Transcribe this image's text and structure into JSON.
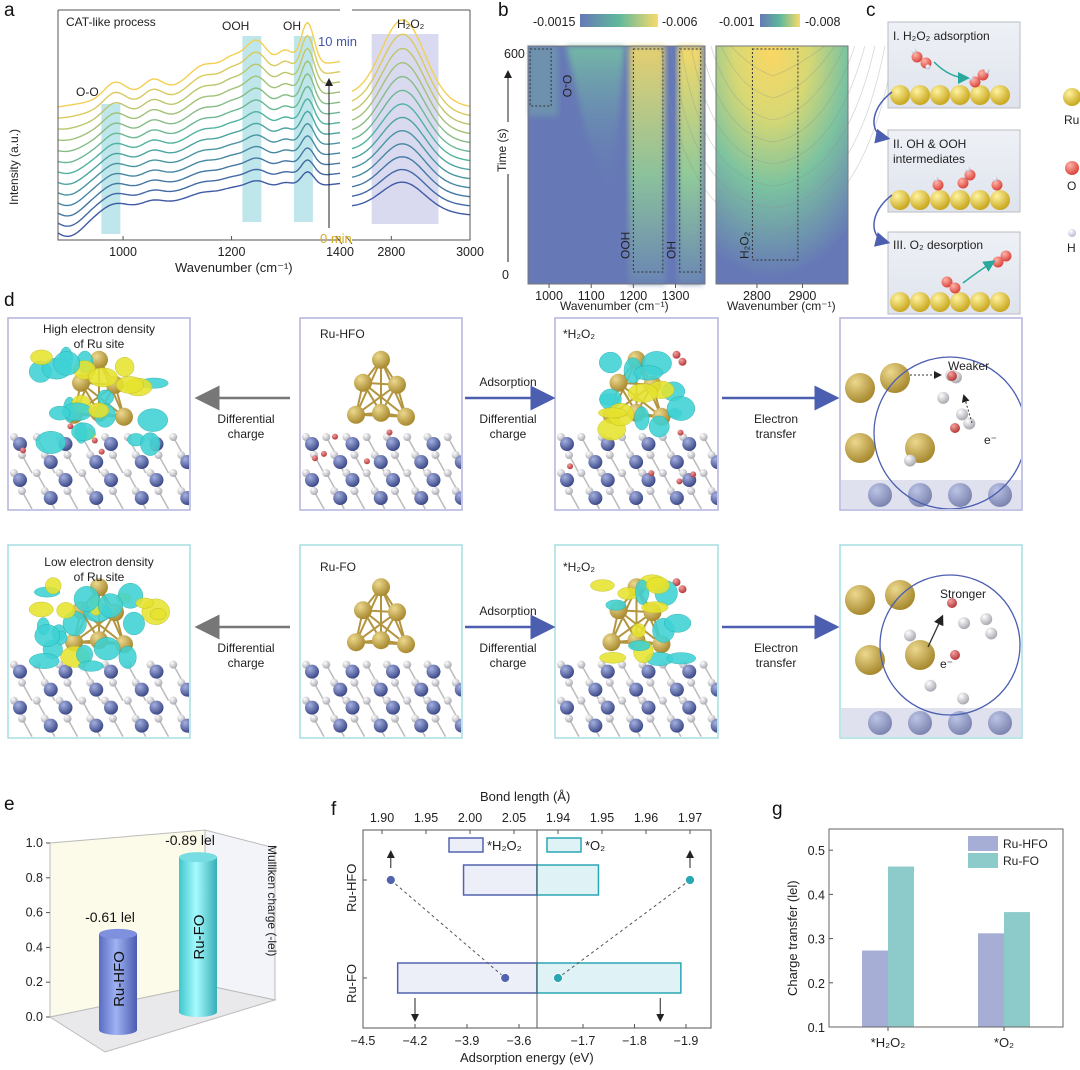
{
  "panel_labels": {
    "a": "a",
    "b": "b",
    "c": "c",
    "d": "d",
    "e": "e",
    "f": "f",
    "g": "g"
  },
  "chart_data": [
    {
      "panel": "a",
      "type": "line",
      "annotation": "CAT-like process",
      "xlabel": "Wavenumber (cm⁻¹)",
      "ylabel": "Intensity (a.u.)",
      "x_segments": [
        [
          880,
          1400
        ],
        [
          2700,
          3000
        ]
      ],
      "x_ticks": [
        1000,
        1200,
        1400,
        2800,
        3000
      ],
      "bands": [
        {
          "label": "O-O",
          "range": [
            960,
            995
          ]
        },
        {
          "label": "OOH",
          "range": [
            1220,
            1255
          ]
        },
        {
          "label": "OH",
          "range": [
            1315,
            1350
          ]
        },
        {
          "label": "H₂O₂",
          "range": [
            2750,
            2920
          ]
        }
      ],
      "time_start": "0 min",
      "time_end": "10 min",
      "series_count": 13,
      "colors": {
        "start": "#3f5aa6",
        "mid": "#4fb3a0",
        "end": "#f4cf52",
        "band": "#bfe6ea",
        "band_h2o2": "#d9daf0"
      }
    },
    {
      "panel": "b",
      "type": "heatmap",
      "ylabel": "Time (s)",
      "xlabel": "Wavenumber (cm⁻¹)",
      "y_ticks": [
        "0",
        "600"
      ],
      "maps": [
        {
          "xlim": [
            950,
            1370
          ],
          "x_ticks": [
            1000,
            1100,
            1200,
            1300
          ],
          "colorbar": [
            "-0.0015",
            "-0.006"
          ],
          "boxes": [
            {
              "label": "O-O",
              "range": [
                955,
                1005
              ]
            },
            {
              "label": "OOH",
              "range": [
                1200,
                1270
              ]
            },
            {
              "label": "OH",
              "range": [
                1310,
                1360
              ]
            }
          ]
        },
        {
          "xlim": [
            2710,
            3000
          ],
          "x_ticks": [
            2800,
            2900
          ],
          "colorbar": [
            "-0.001",
            "-0.008"
          ],
          "boxes": [
            {
              "label": "H₂O₂",
              "range": [
                2790,
                2890
              ]
            }
          ]
        }
      ],
      "colors": {
        "low": "#6679b6",
        "mid": "#5fb89c",
        "high": "#f8da6a"
      }
    },
    {
      "panel": "e",
      "type": "bar",
      "style": "3d-cylinder",
      "ylabel": "Mulliken charge (-lel)",
      "ylim": [
        0,
        1.0
      ],
      "y_ticks": [
        "0.0",
        "0.2",
        "0.4",
        "0.6",
        "0.8",
        "1.0"
      ],
      "categories": [
        "Ru-HFO",
        "Ru-FO"
      ],
      "values": [
        0.61,
        0.89
      ],
      "data_labels": [
        "-0.61 lel",
        "-0.89 lel"
      ],
      "colors": [
        "#6f82d6",
        "#5fe0e6"
      ]
    },
    {
      "panel": "f",
      "type": "bar",
      "orientation": "horizontal",
      "xlabel": "Adsorption energy (eV)",
      "x2label": "Bond length (Å)",
      "categories": [
        "Ru-HFO",
        "Ru-FO"
      ],
      "x_ticks_left": [
        "−4.5",
        "−4.2",
        "−3.9",
        "−3.6"
      ],
      "x_ticks_right": [
        "−1.7",
        "−1.8",
        "−1.9"
      ],
      "x2_ticks_left": [
        "1.90",
        "1.95",
        "2.00",
        "2.05"
      ],
      "x2_ticks_right": [
        "1.94",
        "1.95",
        "1.96",
        "1.97"
      ],
      "series": [
        {
          "name": "*H₂O₂",
          "energy": [
            -3.92,
            -4.3
          ],
          "bond_length": [
            1.91,
            2.04
          ],
          "color": "#5463b0",
          "fill": "#eceef8"
        },
        {
          "name": "*O₂",
          "energy": [
            -1.73,
            -1.89
          ],
          "bond_length": [
            1.97,
            1.94
          ],
          "color": "#2aa7b5",
          "fill": "#dff2f6"
        }
      ]
    },
    {
      "panel": "g",
      "type": "bar",
      "ylabel": "Charge transfer (lel)",
      "ylim": [
        0.1,
        0.55
      ],
      "y_ticks": [
        "0.1",
        "0.2",
        "0.3",
        "0.4",
        "0.5"
      ],
      "categories": [
        "*H₂O₂",
        "*O₂"
      ],
      "series": [
        {
          "name": "Ru-HFO",
          "values": [
            0.273,
            0.312
          ],
          "color": "#a7aed6"
        },
        {
          "name": "Ru-FO",
          "values": [
            0.463,
            0.36
          ],
          "color": "#8dcaca"
        }
      ],
      "legend": "top-right"
    }
  ],
  "panel_c": {
    "steps": [
      "I. H₂O₂ adsorption",
      "II. OH & OOH",
      "intermediates",
      "III. O₂ desorption"
    ],
    "legend": [
      "Ru",
      "O",
      "H"
    ],
    "colors": {
      "ru": "#e6c83a",
      "o": "#e8605a",
      "h": "#e4e6f2"
    }
  },
  "panel_d": {
    "row1": {
      "left_title": [
        "High electron density",
        "of Ru site"
      ],
      "model": "Ru-HFO",
      "adsorbed": "*H₂O₂",
      "zoom_label": "Weaker",
      "electron": "e⁻"
    },
    "row2": {
      "left_title": [
        "Low electron density",
        "of Ru site"
      ],
      "model": "Ru-FO",
      "adsorbed": "*H₂O₂",
      "zoom_label": "Stronger",
      "electron": "e⁻"
    },
    "arrows": {
      "diff": [
        "Differential",
        "charge"
      ],
      "ads": "Adsorption",
      "transfer": [
        "Electron",
        "transfer"
      ]
    },
    "colors": {
      "row1_border": "#b2b4de",
      "row2_border": "#a6dde0",
      "ru": "#c9ab4e",
      "substrate": "#55649f",
      "lobe_pos": "#3ed2d4",
      "lobe_neg": "#e6e32e"
    }
  }
}
